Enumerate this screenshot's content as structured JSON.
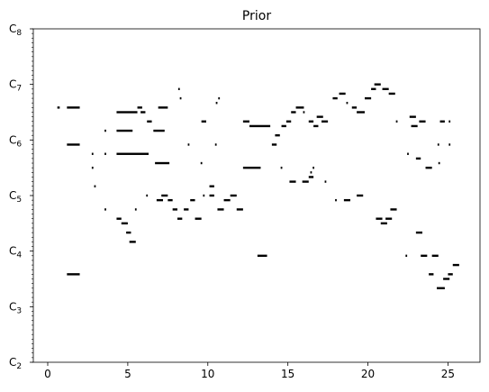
{
  "chart_data": {
    "type": "pianoroll",
    "title": "Prior",
    "xlim": [
      -0.9,
      27.0
    ],
    "xticks": [
      0,
      5,
      10,
      15,
      20,
      25
    ],
    "ylim": [
      36,
      108
    ],
    "yticks": [
      {
        "value": 36,
        "label": "C2"
      },
      {
        "value": 48,
        "label": "C3"
      },
      {
        "value": 60,
        "label": "C4"
      },
      {
        "value": 72,
        "label": "C5"
      },
      {
        "value": 84,
        "label": "C6"
      },
      {
        "value": 96,
        "label": "C7"
      },
      {
        "value": 108,
        "label": "C8"
      }
    ],
    "color": "#000000",
    "notes": [
      [
        0.6,
        0.75,
        91
      ],
      [
        1.2,
        2.0,
        91
      ],
      [
        1.2,
        2.0,
        83
      ],
      [
        1.2,
        2.0,
        55
      ],
      [
        2.75,
        2.85,
        81
      ],
      [
        2.75,
        2.85,
        78
      ],
      [
        2.9,
        3.0,
        74
      ],
      [
        3.55,
        3.65,
        86
      ],
      [
        3.55,
        3.65,
        81
      ],
      [
        3.55,
        3.65,
        69
      ],
      [
        4.3,
        4.6,
        67
      ],
      [
        4.6,
        5.0,
        66
      ],
      [
        4.9,
        5.2,
        64
      ],
      [
        5.1,
        5.5,
        62
      ],
      [
        4.3,
        5.6,
        90
      ],
      [
        4.3,
        5.3,
        86
      ],
      [
        4.3,
        6.3,
        81
      ],
      [
        5.6,
        5.9,
        91
      ],
      [
        5.8,
        6.1,
        90
      ],
      [
        5.45,
        5.55,
        69
      ],
      [
        6.15,
        6.25,
        72
      ],
      [
        6.2,
        6.5,
        88
      ],
      [
        6.6,
        7.3,
        86
      ],
      [
        6.7,
        7.6,
        79
      ],
      [
        6.9,
        7.5,
        91
      ],
      [
        6.8,
        7.2,
        71
      ],
      [
        7.1,
        7.5,
        72
      ],
      [
        7.5,
        7.8,
        71
      ],
      [
        7.8,
        8.1,
        69
      ],
      [
        8.1,
        8.4,
        67
      ],
      [
        8.15,
        8.25,
        95
      ],
      [
        8.25,
        8.35,
        93
      ],
      [
        8.5,
        8.8,
        69
      ],
      [
        8.75,
        8.85,
        83
      ],
      [
        8.9,
        9.2,
        71
      ],
      [
        9.2,
        9.6,
        67
      ],
      [
        9.6,
        9.9,
        88
      ],
      [
        9.55,
        9.65,
        79
      ],
      [
        9.7,
        9.8,
        72
      ],
      [
        10.1,
        10.4,
        74
      ],
      [
        10.1,
        10.4,
        72
      ],
      [
        10.45,
        10.55,
        83
      ],
      [
        10.5,
        10.6,
        92
      ],
      [
        10.65,
        10.75,
        93
      ],
      [
        10.6,
        11.0,
        69
      ],
      [
        11.0,
        11.4,
        71
      ],
      [
        11.4,
        11.8,
        72
      ],
      [
        11.8,
        12.2,
        69
      ],
      [
        12.2,
        12.6,
        88
      ],
      [
        12.2,
        13.3,
        78
      ],
      [
        12.6,
        13.9,
        87
      ],
      [
        13.1,
        13.7,
        59
      ],
      [
        14.0,
        14.3,
        83
      ],
      [
        14.2,
        14.5,
        85
      ],
      [
        14.6,
        14.9,
        87
      ],
      [
        14.55,
        14.65,
        78
      ],
      [
        14.9,
        15.2,
        88
      ],
      [
        15.1,
        15.5,
        75
      ],
      [
        15.2,
        15.5,
        90
      ],
      [
        15.5,
        16.0,
        91
      ],
      [
        15.9,
        16.3,
        75
      ],
      [
        15.95,
        16.05,
        90
      ],
      [
        16.3,
        16.6,
        88
      ],
      [
        16.3,
        16.6,
        76
      ],
      [
        16.4,
        16.5,
        77
      ],
      [
        16.55,
        16.65,
        78
      ],
      [
        16.6,
        16.9,
        87
      ],
      [
        16.8,
        17.2,
        89
      ],
      [
        17.1,
        17.5,
        88
      ],
      [
        17.3,
        17.4,
        75
      ],
      [
        17.8,
        18.1,
        93
      ],
      [
        17.95,
        18.05,
        71
      ],
      [
        18.2,
        18.6,
        94
      ],
      [
        18.5,
        18.9,
        71
      ],
      [
        18.65,
        18.75,
        92
      ],
      [
        19.0,
        19.3,
        91
      ],
      [
        19.3,
        19.7,
        72
      ],
      [
        19.3,
        19.8,
        90
      ],
      [
        19.8,
        20.2,
        93
      ],
      [
        20.2,
        20.5,
        95
      ],
      [
        20.4,
        20.8,
        96
      ],
      [
        20.5,
        20.9,
        67
      ],
      [
        20.8,
        21.2,
        66
      ],
      [
        20.9,
        21.3,
        95
      ],
      [
        21.1,
        21.5,
        67
      ],
      [
        21.3,
        21.7,
        94
      ],
      [
        21.4,
        21.8,
        69
      ],
      [
        21.75,
        21.85,
        88
      ],
      [
        22.35,
        22.45,
        59
      ],
      [
        22.45,
        22.55,
        81
      ],
      [
        22.6,
        23.0,
        89
      ],
      [
        22.7,
        23.1,
        87
      ],
      [
        23.0,
        23.3,
        80
      ],
      [
        23.0,
        23.4,
        64
      ],
      [
        23.2,
        23.6,
        88
      ],
      [
        23.3,
        23.7,
        59
      ],
      [
        23.6,
        24.0,
        78
      ],
      [
        23.8,
        24.1,
        55
      ],
      [
        24.0,
        24.4,
        59
      ],
      [
        24.3,
        24.8,
        52
      ],
      [
        24.35,
        24.45,
        83
      ],
      [
        24.4,
        24.5,
        79
      ],
      [
        24.5,
        24.8,
        88
      ],
      [
        24.7,
        25.1,
        54
      ],
      [
        25.0,
        25.3,
        55
      ],
      [
        25.05,
        25.15,
        88
      ],
      [
        25.05,
        25.15,
        83
      ],
      [
        25.3,
        25.7,
        57
      ]
    ]
  }
}
